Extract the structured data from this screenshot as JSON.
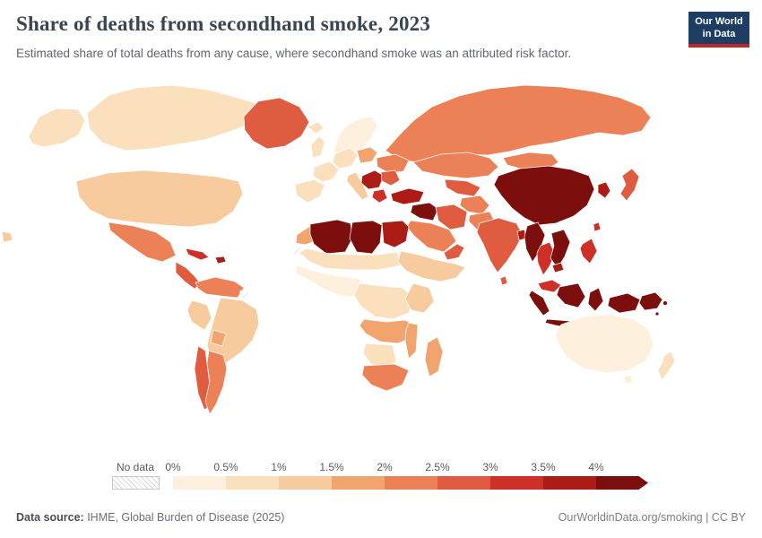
{
  "header": {
    "title": "Share of deaths from secondhand smoke, 2023",
    "subtitle": "Estimated share of total deaths from any cause, where secondhand smoke was an attributed risk factor.",
    "logo": {
      "line1": "Our World",
      "line2": "in Data"
    }
  },
  "legend": {
    "no_data_label": "No data",
    "tick_labels": [
      "0%",
      "0.5%",
      "1%",
      "1.5%",
      "2%",
      "2.5%",
      "3%",
      "3.5%",
      "4%"
    ],
    "bin_colors": [
      "#FDF0DC",
      "#FAE0BC",
      "#F7CB9E",
      "#F2A46F",
      "#EC8056",
      "#E05C40",
      "#CE3027",
      "#AC1C17"
    ],
    "arrow_color": "#7D0E0E"
  },
  "footer": {
    "source_label": "Data source:",
    "source_text": " IHME, Global Burden of Disease (2025)",
    "credit": "OurWorldinData.org/smoking | CC BY"
  },
  "colors": {
    "logo_navy": "#1d3d63",
    "logo_red": "#c0262c",
    "title_text": "#394551",
    "subtitle_text": "#5f666d",
    "no_data_hatch": "#d9d9d9"
  },
  "chart_data": {
    "type": "heatmap",
    "subtype": "choropleth-world-map",
    "title": "Share of deaths from secondhand smoke, 2023",
    "subtitle": "Estimated share of total deaths from any cause, where secondhand smoke was an attributed risk factor.",
    "unit": "% of deaths",
    "year": 2023,
    "legend_position": "bottom",
    "bins": [
      {
        "range": "0-0.5%",
        "color": "#FDF0DC"
      },
      {
        "range": "0.5-1%",
        "color": "#FAE0BC"
      },
      {
        "range": "1-1.5%",
        "color": "#F7CB9E"
      },
      {
        "range": "1.5-2%",
        "color": "#F2A46F"
      },
      {
        "range": "2-2.5%",
        "color": "#EC8056"
      },
      {
        "range": "2.5-3%",
        "color": "#E05C40"
      },
      {
        "range": "3-3.5%",
        "color": "#CE3027"
      },
      {
        "range": "3.5-4%",
        "color": "#AC1C17"
      },
      {
        "range": ">4%",
        "color": "#7D0E0E"
      },
      {
        "range": "No data",
        "color": "hatched"
      }
    ],
    "regions": [
      {
        "name": "Canada",
        "value_range": "0.5-1%"
      },
      {
        "name": "Alaska (United States)",
        "value_range": "0.5-1%"
      },
      {
        "name": "United States",
        "value_range": "1-1.5%"
      },
      {
        "name": "Hawaii (United States)",
        "value_range": "1-1.5%"
      },
      {
        "name": "Greenland",
        "value_range": "2.5-3%"
      },
      {
        "name": "Mexico",
        "value_range": "2-2.5%"
      },
      {
        "name": "Central America",
        "value_range": "2.5-3%"
      },
      {
        "name": "Cuba",
        "value_range": "3-3.5%"
      },
      {
        "name": "Hispaniola",
        "value_range": "3.5-4%"
      },
      {
        "name": "Colombia and Venezuela",
        "value_range": "2-2.5%"
      },
      {
        "name": "French Guiana",
        "value_range": "No data"
      },
      {
        "name": "Brazil",
        "value_range": "1-1.5%"
      },
      {
        "name": "Peru",
        "value_range": "1-1.5%"
      },
      {
        "name": "Bolivia",
        "value_range": "1.5-2%"
      },
      {
        "name": "Chile",
        "value_range": "2.5-3%"
      },
      {
        "name": "Argentina",
        "value_range": "2-2.5%"
      },
      {
        "name": "Iceland",
        "value_range": "0.5-1%"
      },
      {
        "name": "United Kingdom",
        "value_range": "0.5-1%"
      },
      {
        "name": "Scandinavia",
        "value_range": "0-0.5%"
      },
      {
        "name": "Spain and Portugal",
        "value_range": "0.5-1%"
      },
      {
        "name": "France",
        "value_range": "0.5-1%"
      },
      {
        "name": "Central Europe",
        "value_range": "0.5-1%"
      },
      {
        "name": "Italy",
        "value_range": "1-1.5%"
      },
      {
        "name": "Poland and Baltics",
        "value_range": "1.5-2%"
      },
      {
        "name": "Ukraine",
        "value_range": "2-2.5%"
      },
      {
        "name": "Balkans",
        "value_range": "3.5-4%"
      },
      {
        "name": "Romania and Bulgaria",
        "value_range": "2.5-3%"
      },
      {
        "name": "Greece",
        "value_range": "3-3.5%"
      },
      {
        "name": "Turkey",
        "value_range": "3.5-4%"
      },
      {
        "name": "Syria and Iraq",
        "value_range": ">4%"
      },
      {
        "name": "Iran",
        "value_range": "2.5-3%"
      },
      {
        "name": "Saudi Arabia",
        "value_range": "2-2.5%"
      },
      {
        "name": "Yemen and Oman",
        "value_range": "2.5-3%"
      },
      {
        "name": "Kazakhstan",
        "value_range": "2-2.5%"
      },
      {
        "name": "Uzbekistan and Turkmenistan",
        "value_range": "2.5-3%"
      },
      {
        "name": "Afghanistan",
        "value_range": "2-2.5%"
      },
      {
        "name": "Pakistan",
        "value_range": "2-2.5%"
      },
      {
        "name": "Russia",
        "value_range": "2-2.5%"
      },
      {
        "name": "Mongolia",
        "value_range": "2-2.5%"
      },
      {
        "name": "China",
        "value_range": ">4%"
      },
      {
        "name": "Korea",
        "value_range": "3.5-4%"
      },
      {
        "name": "Japan",
        "value_range": "2.5-3%"
      },
      {
        "name": "India",
        "value_range": "2.5-3%"
      },
      {
        "name": "Bangladesh",
        "value_range": "3.5-4%"
      },
      {
        "name": "Sri Lanka",
        "value_range": "2.5-3%"
      },
      {
        "name": "Myanmar",
        "value_range": ">4%"
      },
      {
        "name": "Thailand",
        "value_range": "3-3.5%"
      },
      {
        "name": "Vietnam and Laos",
        "value_range": ">4%"
      },
      {
        "name": "Cambodia",
        "value_range": "3.5-4%"
      },
      {
        "name": "Malaysia",
        "value_range": "3-3.5%"
      },
      {
        "name": "Indonesia",
        "value_range": ">4%"
      },
      {
        "name": "Philippines",
        "value_range": "3-3.5%"
      },
      {
        "name": "Taiwan",
        "value_range": "3-3.5%"
      },
      {
        "name": "Papua New Guinea",
        "value_range": ">4%"
      },
      {
        "name": "Pacific Islands",
        "value_range": ">4%"
      },
      {
        "name": "Australia",
        "value_range": "0-0.5%"
      },
      {
        "name": "New Zealand",
        "value_range": "0.5-1%"
      },
      {
        "name": "Morocco",
        "value_range": "1.5-2%"
      },
      {
        "name": "Western Sahara",
        "value_range": "No data"
      },
      {
        "name": "Algeria",
        "value_range": ">4%"
      },
      {
        "name": "Libya",
        "value_range": ">4%"
      },
      {
        "name": "Egypt",
        "value_range": "3.5-4%"
      },
      {
        "name": "Sahel",
        "value_range": "0.5-1%"
      },
      {
        "name": "West Africa",
        "value_range": "0-0.5%"
      },
      {
        "name": "Sudan and Horn of Africa",
        "value_range": "1-1.5%"
      },
      {
        "name": "Central Africa",
        "value_range": "0.5-1%"
      },
      {
        "name": "East Africa",
        "value_range": "1-1.5%"
      },
      {
        "name": "Angola and Zambia",
        "value_range": "1.5-2%"
      },
      {
        "name": "Namibia and Botswana",
        "value_range": "0.5-1%"
      },
      {
        "name": "South Africa",
        "value_range": "2-2.5%"
      },
      {
        "name": "Mozambique",
        "value_range": "1.5-2%"
      },
      {
        "name": "Madagascar",
        "value_range": "1.5-2%"
      }
    ]
  }
}
